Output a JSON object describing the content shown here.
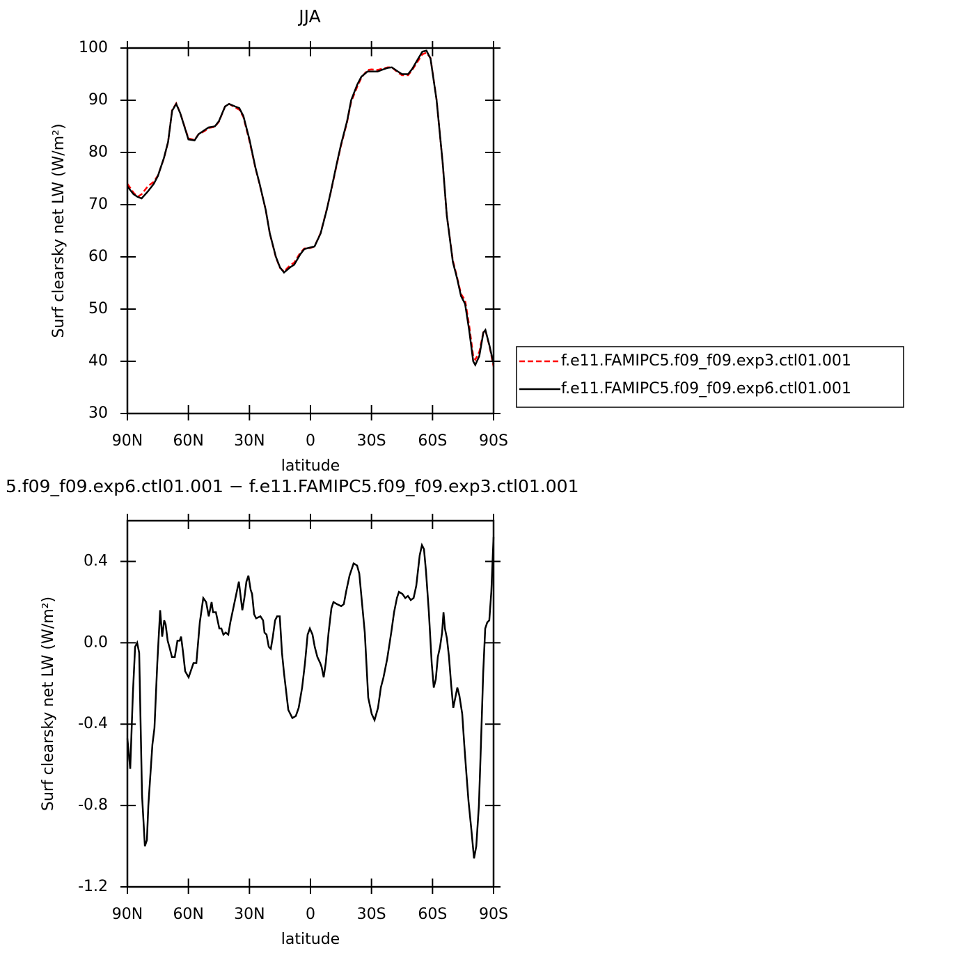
{
  "chart_data": [
    {
      "type": "line",
      "title": "JJA",
      "xlabel": "latitude",
      "ylabel": "Surf clearsky net LW (W/m²)",
      "xlim": [
        90,
        -90
      ],
      "xticks": [
        {
          "value": 90,
          "label": "90N"
        },
        {
          "value": 60,
          "label": "60N"
        },
        {
          "value": 30,
          "label": "30N"
        },
        0,
        {
          "value": -30,
          "label": "30S"
        },
        {
          "value": -60,
          "label": "60S"
        },
        {
          "value": -90,
          "label": "90S"
        }
      ],
      "ylim": [
        30,
        100
      ],
      "yticks": [
        30,
        40,
        50,
        60,
        70,
        80,
        90,
        100
      ],
      "legend": "right",
      "x": [
        90,
        87,
        85,
        83,
        80,
        77,
        75,
        72,
        70,
        68,
        66,
        64,
        62,
        60,
        57,
        55,
        52,
        50,
        47,
        45,
        42,
        40,
        37,
        35,
        33,
        30,
        27,
        25,
        22,
        20,
        17,
        15,
        13,
        10,
        8,
        5,
        3,
        0,
        -2,
        -5,
        -8,
        -10,
        -13,
        -15,
        -18,
        -20,
        -23,
        -25,
        -28,
        -30,
        -33,
        -35,
        -38,
        -40,
        -43,
        -45,
        -48,
        -50,
        -53,
        -55,
        -57,
        -59,
        -62,
        -65,
        -67,
        -70,
        -72,
        -74,
        -76,
        -78,
        -80,
        -81,
        -83,
        -85,
        -86,
        -88,
        -90
      ],
      "series": [
        {
          "name": "f.e11.FAMIPC5.f09_f09.exp3.ctl01.001",
          "color": "#ff0000",
          "line_style": "dashed",
          "values": [
            74.0,
            72.3,
            71.5,
            72.0,
            73.5,
            74.4,
            75.6,
            78.9,
            82.0,
            88.1,
            89.4,
            87.5,
            85.1,
            82.7,
            82.4,
            83.5,
            84.1,
            84.7,
            84.9,
            85.9,
            88.8,
            89.3,
            88.6,
            88.2,
            86.8,
            82.2,
            76.9,
            73.9,
            69.0,
            64.5,
            59.9,
            57.9,
            57.2,
            58.4,
            58.9,
            60.8,
            61.6,
            61.7,
            62.0,
            64.6,
            69.1,
            72.4,
            77.8,
            81.3,
            85.8,
            89.7,
            92.6,
            94.3,
            95.8,
            95.9,
            95.8,
            96.0,
            96.3,
            96.3,
            95.3,
            94.8,
            94.8,
            95.8,
            97.6,
            98.8,
            99.1,
            98.1,
            90.1,
            77.9,
            68.0,
            59.3,
            56.2,
            52.9,
            51.7,
            46.9,
            41.0,
            40.3,
            41.8,
            45.6,
            45.9,
            42.9,
            39.0
          ]
        },
        {
          "name": "f.e11.FAMIPC5.f09_f09.exp6.ctl01.001",
          "color": "#000000",
          "line_style": "solid",
          "values": [
            73.5,
            72.0,
            71.5,
            71.2,
            72.5,
            74.0,
            75.5,
            79.0,
            82.0,
            88.0,
            89.3,
            87.5,
            85.0,
            82.5,
            82.3,
            83.5,
            84.3,
            84.8,
            85.0,
            86.0,
            88.8,
            89.3,
            88.8,
            88.5,
            87.0,
            82.5,
            77.0,
            74.0,
            69.0,
            64.5,
            60.0,
            58.0,
            57.0,
            58.0,
            58.5,
            60.5,
            61.5,
            61.8,
            62.0,
            64.5,
            69.0,
            72.5,
            78.0,
            81.5,
            86.0,
            90.0,
            93.0,
            94.5,
            95.5,
            95.5,
            95.5,
            95.8,
            96.2,
            96.3,
            95.5,
            95.0,
            95.0,
            96.0,
            98.0,
            99.3,
            99.5,
            98.0,
            90.0,
            78.0,
            68.0,
            59.0,
            56.0,
            52.5,
            51.0,
            46.0,
            40.0,
            39.3,
            41.0,
            45.5,
            46.0,
            43.0,
            39.5
          ]
        }
      ]
    },
    {
      "type": "line",
      "title": "5.f09_f09.exp6.ctl01.001 − f.e11.FAMIPC5.f09_f09.exp3.ctl01.001",
      "xlabel": "latitude",
      "ylabel": "Surf clearsky net LW (W/m²)",
      "xlim": [
        90,
        -90
      ],
      "xticks": [
        {
          "value": 90,
          "label": "90N"
        },
        {
          "value": 60,
          "label": "60N"
        },
        {
          "value": 30,
          "label": "30N"
        },
        0,
        {
          "value": -30,
          "label": "30S"
        },
        {
          "value": -60,
          "label": "60S"
        },
        {
          "value": -90,
          "label": "90S"
        }
      ],
      "ylim": [
        -1.2,
        0.6
      ],
      "yticks": [
        -1.2,
        -0.8,
        -0.4,
        {
          "value": 0,
          "label": "0.0"
        },
        0.4
      ],
      "x": [
        90,
        88.6,
        87.3,
        86.2,
        85.2,
        84.2,
        82.8,
        81.4,
        80.4,
        79.7,
        77.7,
        76.7,
        75.3,
        73.9,
        72.9,
        71.9,
        71.2,
        70.2,
        69.1,
        68.1,
        66.7,
        65.4,
        64.3,
        63.6,
        62.6,
        61.6,
        59.9,
        57.5,
        56.1,
        54.4,
        52.7,
        51.3,
        50.0,
        48.6,
        47.9,
        46.5,
        44.8,
        43.8,
        42.8,
        41.7,
        40.4,
        39.4,
        37.3,
        35.2,
        33.5,
        32.5,
        31.5,
        30.5,
        29.4,
        28.7,
        27.7,
        26.7,
        24.6,
        23.3,
        22.6,
        21.6,
        20.5,
        19.5,
        18.5,
        17.4,
        16.4,
        15.1,
        14.0,
        13.0,
        10.9,
        8.9,
        7.2,
        5.8,
        4.1,
        2.7,
        1.4,
        0.3,
        -1.0,
        -2.1,
        -3.4,
        -4.8,
        -5.5,
        -6.5,
        -7.5,
        -8.9,
        -10.3,
        -11.3,
        -13.0,
        -15.1,
        -16.4,
        -17.5,
        -19.2,
        -21.2,
        -22.9,
        -24.0,
        -25.3,
        -26.7,
        -28.4,
        -30.1,
        -31.5,
        -33.2,
        -34.6,
        -35.9,
        -37.7,
        -39.7,
        -41.1,
        -42.5,
        -43.5,
        -45.2,
        -46.6,
        -47.9,
        -49.3,
        -50.7,
        -52.0,
        -53.7,
        -54.8,
        -55.8,
        -56.8,
        -58.2,
        -59.6,
        -60.6,
        -61.6,
        -62.6,
        -63.7,
        -64.7,
        -65.4,
        -66.1,
        -67.1,
        -68.1,
        -69.1,
        -70.2,
        -71.2,
        -72.2,
        -73.2,
        -74.6,
        -75.6,
        -76.7,
        -77.7,
        -79.1,
        -80.4,
        -81.5,
        -82.8,
        -83.8,
        -84.9,
        -85.9,
        -86.9,
        -87.9,
        -88.9,
        -90
      ],
      "series": [
        {
          "color": "#000000",
          "line_style": "solid",
          "values": [
            -0.47,
            -0.62,
            -0.25,
            -0.02,
            0.0,
            -0.05,
            -0.75,
            -1.0,
            -0.97,
            -0.8,
            -0.5,
            -0.42,
            -0.1,
            0.16,
            0.03,
            0.11,
            0.09,
            0.01,
            -0.03,
            -0.07,
            -0.07,
            0.01,
            0.01,
            0.03,
            -0.05,
            -0.14,
            -0.17,
            -0.1,
            -0.1,
            0.1,
            0.22,
            0.2,
            0.13,
            0.2,
            0.15,
            0.15,
            0.07,
            0.07,
            0.04,
            0.05,
            0.04,
            0.1,
            0.2,
            0.3,
            0.16,
            0.22,
            0.3,
            0.33,
            0.26,
            0.24,
            0.14,
            0.12,
            0.13,
            0.11,
            0.05,
            0.04,
            -0.02,
            -0.03,
            0.03,
            0.11,
            0.13,
            0.13,
            -0.05,
            -0.15,
            -0.33,
            -0.37,
            -0.36,
            -0.32,
            -0.22,
            -0.1,
            0.04,
            0.07,
            0.04,
            -0.02,
            -0.07,
            -0.1,
            -0.12,
            -0.17,
            -0.1,
            0.05,
            0.17,
            0.2,
            0.19,
            0.18,
            0.19,
            0.25,
            0.33,
            0.39,
            0.38,
            0.34,
            0.2,
            0.05,
            -0.27,
            -0.35,
            -0.38,
            -0.32,
            -0.22,
            -0.17,
            -0.08,
            0.05,
            0.15,
            0.22,
            0.25,
            0.24,
            0.22,
            0.23,
            0.21,
            0.22,
            0.28,
            0.43,
            0.48,
            0.46,
            0.35,
            0.15,
            -0.1,
            -0.22,
            -0.18,
            -0.07,
            -0.02,
            0.05,
            0.15,
            0.07,
            0.02,
            -0.07,
            -0.2,
            -0.32,
            -0.27,
            -0.22,
            -0.26,
            -0.35,
            -0.5,
            -0.65,
            -0.78,
            -0.92,
            -1.06,
            -1.0,
            -0.8,
            -0.5,
            -0.15,
            0.07,
            0.1,
            0.11,
            0.25,
            0.52
          ]
        }
      ]
    }
  ]
}
